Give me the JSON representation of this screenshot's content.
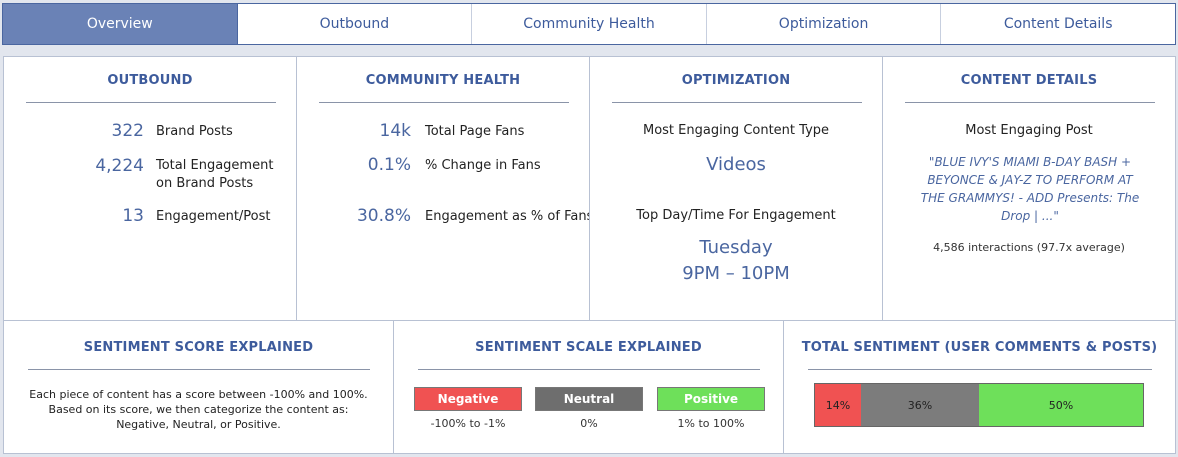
{
  "tabs": [
    {
      "label": "Overview",
      "active": true
    },
    {
      "label": "Outbound",
      "active": false
    },
    {
      "label": "Community Health",
      "active": false
    },
    {
      "label": "Optimization",
      "active": false
    },
    {
      "label": "Content Details",
      "active": false
    }
  ],
  "outbound": {
    "title": "OUTBOUND",
    "stats": [
      {
        "value": "322",
        "label": "Brand Posts"
      },
      {
        "value": "4,224",
        "label": "Total Engagement on Brand Posts"
      },
      {
        "value": "13",
        "label": "Engagement/Post"
      }
    ]
  },
  "community": {
    "title": "COMMUNITY HEALTH",
    "stats": [
      {
        "value": "14k",
        "label": "Total Page Fans"
      },
      {
        "value": "0.1%",
        "label": "% Change in Fans"
      },
      {
        "value": "30.8%",
        "label": "Engagement as % of Fans"
      }
    ]
  },
  "optimization": {
    "title": "OPTIMIZATION",
    "content_type_label": "Most Engaging Content Type",
    "content_type_value": "Videos",
    "daytime_label": "Top Day/Time For Engagement",
    "day_value": "Tuesday",
    "time_value": "9PM – 10PM"
  },
  "content_details": {
    "title": "CONTENT DETAILS",
    "post_label": "Most Engaging Post",
    "post_text": "\"BLUE IVY'S MIAMI B-DAY BASH + BEYONCE & JAY-Z TO PERFORM AT THE GRAMMYS! - ADD Presents: The Drop | ...\"",
    "interactions": "4,586 interactions (97.7x average)"
  },
  "sentiment_score": {
    "title": "SENTIMENT SCORE EXPLAINED",
    "line1": "Each piece of content has a score between -100% and 100%.",
    "line2": "Based on its score, we then categorize the content as:",
    "line3": "Negative, Neutral, or Positive."
  },
  "sentiment_scale": {
    "title": "SENTIMENT SCALE EXPLAINED",
    "items": [
      {
        "label": "Negative",
        "range": "-100% to -1%",
        "color": "#f05252"
      },
      {
        "label": "Neutral",
        "range": "0%",
        "color": "#6e6e6e"
      },
      {
        "label": "Positive",
        "range": "1% to 100%",
        "color": "#6ee05a"
      }
    ]
  },
  "total_sentiment": {
    "title": "TOTAL SENTIMENT (USER COMMENTS & POSTS)",
    "segments": [
      {
        "label": "14%",
        "fraction": 0.14,
        "color": "#f05252"
      },
      {
        "label": "36%",
        "fraction": 0.36,
        "color": "#7c7c7c"
      },
      {
        "label": "50%",
        "fraction": 0.5,
        "color": "#6ee05a"
      }
    ]
  }
}
